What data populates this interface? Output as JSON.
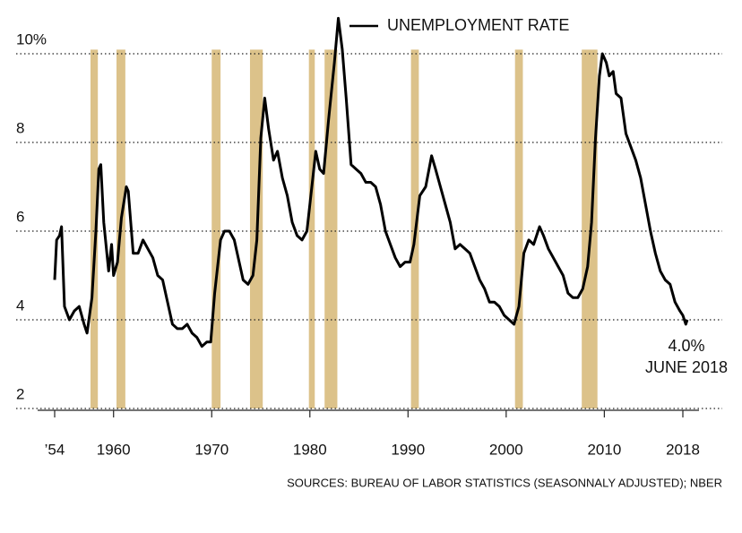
{
  "chart_data": {
    "type": "line",
    "legend": "UNEMPLOYMENT RATE",
    "source": "SOURCES: BUREAU OF LABOR STATISTICS (SEASONNALY ADJUSTED); NBER",
    "annotations": [
      "4.0%",
      "JUNE 2018"
    ],
    "xlim": [
      1954,
      2018
    ],
    "ylim": [
      2,
      10.8
    ],
    "xticks": [
      {
        "value": 1954,
        "label": "’54"
      },
      1960,
      1970,
      1980,
      1990,
      2000,
      2010,
      2018
    ],
    "yticks": [
      2,
      4,
      6,
      8,
      {
        "value": 10,
        "label": "10%"
      }
    ],
    "grid": true,
    "recession_color": "#dcc28a",
    "recessions": [
      [
        1957.65,
        1958.4
      ],
      [
        1960.3,
        1961.2
      ],
      [
        1970.0,
        1970.9
      ],
      [
        1973.9,
        1975.2
      ],
      [
        1979.9,
        1980.5
      ],
      [
        1981.5,
        1982.8
      ],
      [
        1990.3,
        1991.1
      ],
      [
        2000.9,
        2001.7
      ],
      [
        2007.7,
        2009.3
      ]
    ],
    "series": [
      {
        "name": "UNEMPLOYMENT RATE",
        "color": "#000000",
        "x": [
          1954.0,
          1954.2,
          1954.5,
          1954.7,
          1955.0,
          1955.5,
          1956.0,
          1956.5,
          1957.0,
          1957.3,
          1957.8,
          1958.2,
          1958.5,
          1958.7,
          1959.0,
          1959.5,
          1959.8,
          1960.0,
          1960.4,
          1960.8,
          1961.3,
          1961.5,
          1962.0,
          1962.5,
          1963.0,
          1963.5,
          1964.0,
          1964.5,
          1965.0,
          1965.5,
          1966.0,
          1966.5,
          1967.0,
          1967.5,
          1968.0,
          1968.5,
          1969.0,
          1969.5,
          1969.9,
          1970.3,
          1970.9,
          1971.3,
          1971.8,
          1972.3,
          1972.8,
          1973.2,
          1973.7,
          1974.2,
          1974.6,
          1975.0,
          1975.4,
          1975.8,
          1976.3,
          1976.7,
          1977.2,
          1977.7,
          1978.2,
          1978.7,
          1979.2,
          1979.7,
          1980.3,
          1980.6,
          1981.0,
          1981.4,
          1981.9,
          1982.5,
          1982.9,
          1983.3,
          1983.7,
          1984.2,
          1984.7,
          1985.2,
          1985.7,
          1986.2,
          1986.7,
          1987.2,
          1987.7,
          1988.2,
          1988.7,
          1989.2,
          1989.7,
          1990.2,
          1990.6,
          1991.2,
          1991.8,
          1992.4,
          1992.8,
          1993.3,
          1993.8,
          1994.3,
          1994.8,
          1995.3,
          1995.8,
          1996.3,
          1996.8,
          1997.3,
          1997.8,
          1998.3,
          1998.8,
          1999.3,
          1999.8,
          2000.3,
          2000.8,
          2001.3,
          2001.8,
          2002.3,
          2002.8,
          2003.4,
          2003.8,
          2004.3,
          2004.8,
          2005.3,
          2005.8,
          2006.3,
          2006.8,
          2007.3,
          2007.8,
          2008.3,
          2008.7,
          2009.1,
          2009.5,
          2009.8,
          2010.2,
          2010.5,
          2010.9,
          2011.2,
          2011.7,
          2012.2,
          2012.7,
          2013.2,
          2013.7,
          2014.2,
          2014.7,
          2015.2,
          2015.7,
          2016.2,
          2016.7,
          2017.2,
          2017.7,
          2018.0,
          2018.3,
          2018.45
        ],
        "values": [
          4.9,
          5.8,
          5.9,
          6.1,
          4.3,
          4.0,
          4.2,
          4.3,
          3.9,
          3.7,
          4.5,
          6.0,
          7.4,
          7.5,
          6.2,
          5.1,
          5.7,
          5.0,
          5.3,
          6.3,
          7.0,
          6.9,
          5.5,
          5.5,
          5.8,
          5.6,
          5.4,
          5.0,
          4.9,
          4.4,
          3.9,
          3.8,
          3.8,
          3.9,
          3.7,
          3.6,
          3.4,
          3.5,
          3.5,
          4.6,
          5.8,
          6.0,
          6.0,
          5.8,
          5.3,
          4.9,
          4.8,
          5.0,
          5.8,
          8.1,
          9.0,
          8.3,
          7.6,
          7.8,
          7.2,
          6.8,
          6.2,
          5.9,
          5.8,
          6.0,
          7.2,
          7.8,
          7.4,
          7.3,
          8.5,
          9.8,
          10.8,
          10.1,
          9.0,
          7.5,
          7.4,
          7.3,
          7.1,
          7.1,
          7.0,
          6.6,
          6.0,
          5.7,
          5.4,
          5.2,
          5.3,
          5.3,
          5.7,
          6.8,
          7.0,
          7.7,
          7.4,
          7.0,
          6.6,
          6.2,
          5.6,
          5.7,
          5.6,
          5.5,
          5.2,
          4.9,
          4.7,
          4.4,
          4.4,
          4.3,
          4.1,
          4.0,
          3.9,
          4.3,
          5.5,
          5.8,
          5.7,
          6.1,
          5.9,
          5.6,
          5.4,
          5.2,
          5.0,
          4.6,
          4.5,
          4.5,
          4.7,
          5.2,
          6.2,
          8.1,
          9.5,
          10.0,
          9.8,
          9.5,
          9.6,
          9.1,
          9.0,
          8.2,
          7.9,
          7.6,
          7.2,
          6.6,
          6.0,
          5.5,
          5.1,
          4.9,
          4.8,
          4.4,
          4.2,
          4.1,
          3.9,
          4.0
        ]
      }
    ]
  }
}
